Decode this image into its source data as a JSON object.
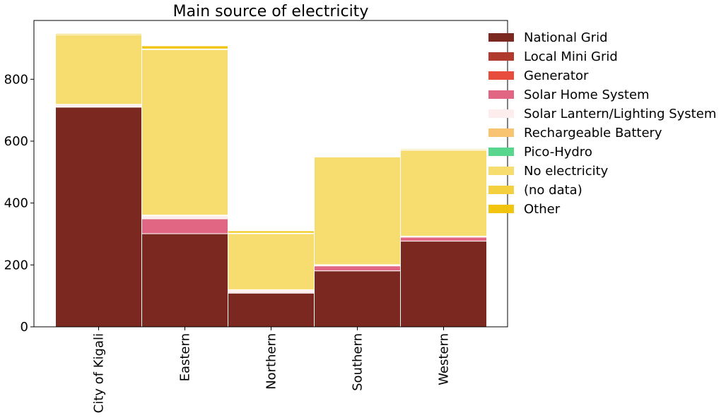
{
  "chart_data": {
    "type": "bar",
    "stacked": true,
    "title": "Main source of electricity",
    "xlabel": "",
    "ylabel": "",
    "categories": [
      "City of Kigali",
      "Eastern",
      "Northern",
      "Southern",
      "Western"
    ],
    "ylim": [
      0,
      990
    ],
    "yticks": [
      0,
      200,
      400,
      600,
      800
    ],
    "grid": false,
    "legend_position": "right",
    "series": [
      {
        "name": "National Grid",
        "color": "#7a2820",
        "values": [
          710,
          301,
          109,
          181,
          277
        ]
      },
      {
        "name": "Local Mini Grid",
        "color": "#b03a2e",
        "values": [
          0,
          0,
          0,
          0,
          0
        ]
      },
      {
        "name": "Generator",
        "color": "#e74c3c",
        "values": [
          0,
          0,
          0,
          0,
          0
        ]
      },
      {
        "name": "Solar Home System",
        "color": "#e06684",
        "values": [
          1,
          48,
          3,
          16,
          13
        ]
      },
      {
        "name": "Solar Lantern/Lighting System",
        "color": "#fdedec",
        "values": [
          8,
          10,
          8,
          4,
          3
        ]
      },
      {
        "name": "Rechargeable Battery",
        "color": "#f8c471",
        "values": [
          0,
          2,
          0,
          0,
          0
        ]
      },
      {
        "name": "Pico-Hydro",
        "color": "#58d68d",
        "values": [
          0,
          0,
          0,
          0,
          0
        ]
      },
      {
        "name": "No electricity",
        "color": "#f7dc6f",
        "values": [
          225,
          535,
          181,
          348,
          278
        ]
      },
      {
        "name": "(no data)",
        "color": "#f4d03f",
        "values": [
          4,
          2,
          2,
          1,
          2
        ]
      },
      {
        "name": "Other",
        "color": "#f1c40f",
        "values": [
          0,
          10,
          7,
          0,
          3
        ]
      }
    ]
  }
}
